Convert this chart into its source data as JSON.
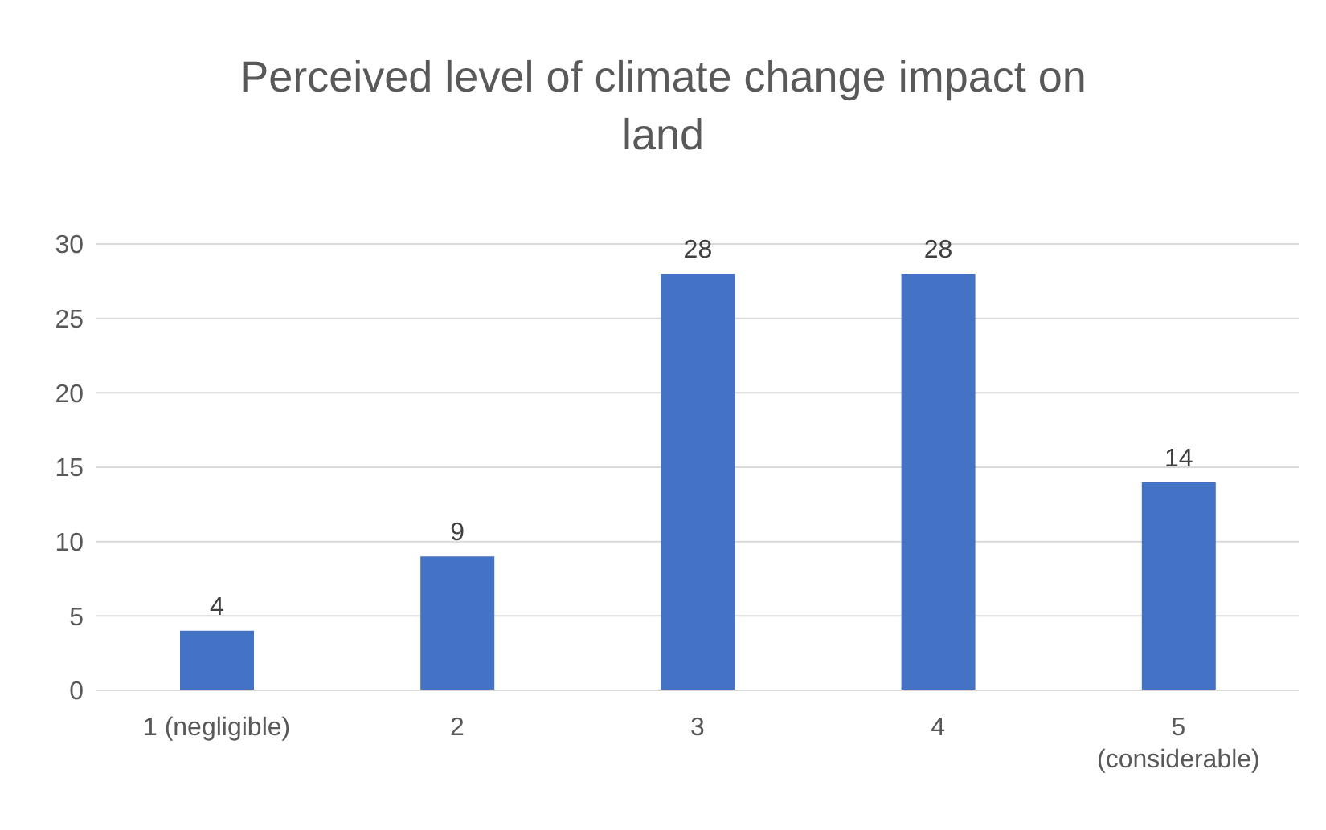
{
  "chart_data": {
    "type": "bar",
    "title": "Perceived level of climate change impact on land",
    "categories": [
      "1 (negligible)",
      "2",
      "3",
      "4",
      "5 (considerable)"
    ],
    "values": [
      4,
      9,
      28,
      28,
      14
    ],
    "color": "#4472c4",
    "ylim": [
      0,
      30
    ],
    "yticks": [
      0,
      5,
      10,
      15,
      20,
      25,
      30
    ],
    "grid": "y",
    "data_labels": true,
    "legend": false
  }
}
